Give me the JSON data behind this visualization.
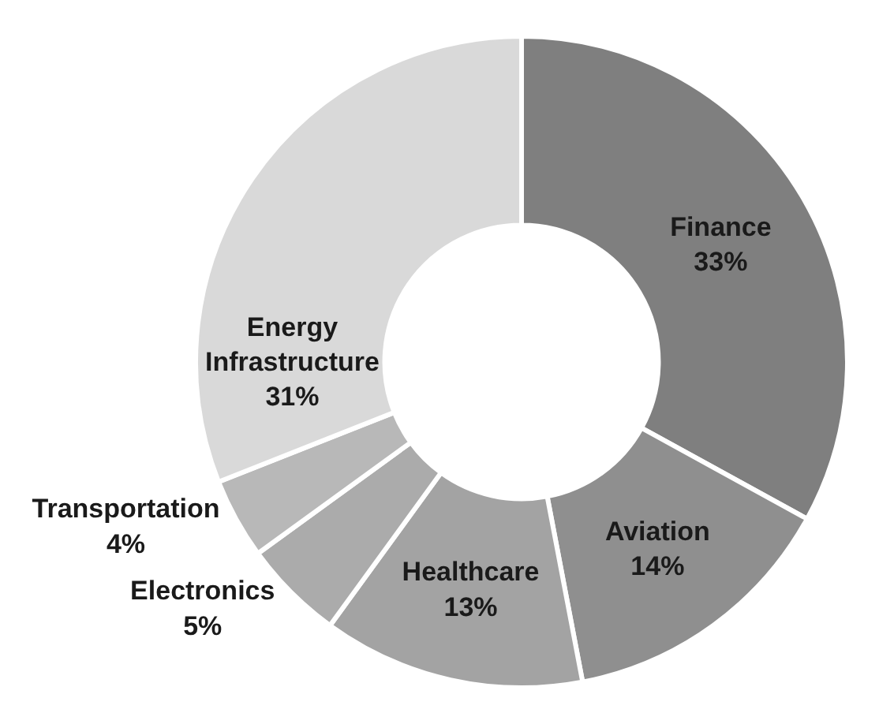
{
  "chart_data": {
    "type": "donut",
    "categories": [
      "Finance",
      "Aviation",
      "Healthcare",
      "Electronics",
      "Transportation",
      "Energy Infrastructure"
    ],
    "values": [
      33,
      14,
      13,
      5,
      4,
      31
    ],
    "value_labels": [
      "33%",
      "14%",
      "13%",
      "5%",
      "4%",
      "31%"
    ],
    "colors": [
      "#7f7f7f",
      "#8f8f8f",
      "#a3a3a3",
      "#ababab",
      "#b8b8b8",
      "#d9d9d9"
    ],
    "legend": false
  }
}
